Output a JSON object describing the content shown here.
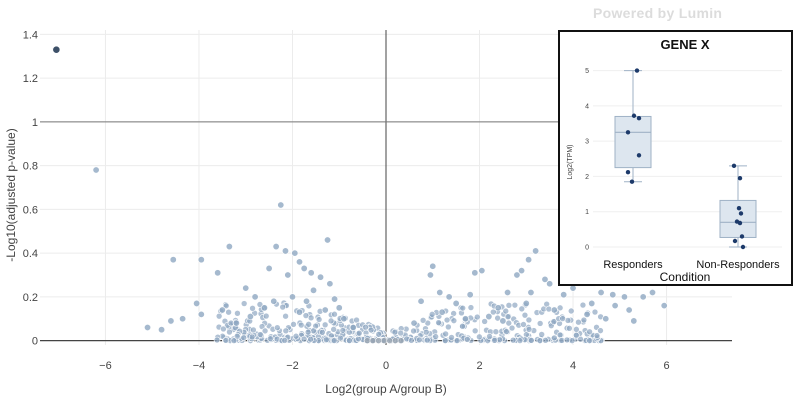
{
  "watermark": "Powered by Lumin",
  "chart_data": [
    {
      "type": "scatter",
      "title": "",
      "xlabel": "Log2(group A/group B)",
      "ylabel": "-Log10(adjusted p-value)",
      "xlim": [
        -7.4,
        7.4
      ],
      "ylim": [
        -0.02,
        1.42
      ],
      "xticks": [
        -6,
        -4,
        -2,
        0,
        2,
        4,
        6
      ],
      "yticks": [
        0,
        0.2,
        0.4,
        0.6,
        0.8,
        1,
        1.2,
        1.4
      ],
      "ytick_labels": [
        "0",
        "0.2",
        "0.4",
        "0.6",
        "0.8",
        "1",
        "1.2",
        "1.4"
      ],
      "threshold_line_y": 1,
      "vertical_line_x": 0,
      "grid": true,
      "point_color": "#8fa7c2",
      "highlight_color": "#3d5068",
      "highlight_point": {
        "x": -7.05,
        "y": 1.33
      },
      "points": [
        [
          -6.2,
          0.78
        ],
        [
          -2.25,
          0.62
        ],
        [
          -1.25,
          0.46
        ],
        [
          -2.35,
          0.43
        ],
        [
          -2.15,
          0.41
        ],
        [
          -1.95,
          0.4
        ],
        [
          -3.35,
          0.43
        ],
        [
          -1.85,
          0.36
        ],
        [
          -1.6,
          0.31
        ],
        [
          -1.75,
          0.33
        ],
        [
          -4.55,
          0.37
        ],
        [
          -3.95,
          0.37
        ],
        [
          -3.6,
          0.31
        ],
        [
          -2.5,
          0.33
        ],
        [
          -1.4,
          0.29
        ],
        [
          -2.1,
          0.3
        ],
        [
          -1.2,
          0.26
        ],
        [
          -1.55,
          0.23
        ],
        [
          -3.0,
          0.24
        ],
        [
          -2.8,
          0.2
        ],
        [
          -4.05,
          0.17
        ],
        [
          -3.5,
          0.14
        ],
        [
          -3.95,
          0.12
        ],
        [
          -4.35,
          0.1
        ],
        [
          -5.1,
          0.06
        ],
        [
          -4.8,
          0.05
        ],
        [
          -4.6,
          0.09
        ],
        [
          -2.6,
          0.15
        ],
        [
          -1.3,
          0.14
        ],
        [
          -1.0,
          0.15
        ],
        [
          -0.9,
          0.1
        ],
        [
          -0.7,
          0.06
        ],
        [
          -1.7,
          0.18
        ],
        [
          -2.4,
          0.18
        ],
        [
          -2.0,
          0.2
        ],
        [
          -3.2,
          0.08
        ],
        [
          -2.9,
          0.11
        ],
        [
          -1.85,
          0.13
        ],
        [
          -1.1,
          0.19
        ],
        [
          1.0,
          0.34
        ],
        [
          0.95,
          0.3
        ],
        [
          1.9,
          0.31
        ],
        [
          2.05,
          0.32
        ],
        [
          3.05,
          0.37
        ],
        [
          3.2,
          0.41
        ],
        [
          2.9,
          0.32
        ],
        [
          2.8,
          0.3
        ],
        [
          3.4,
          0.28
        ],
        [
          1.15,
          0.22
        ],
        [
          1.35,
          0.2
        ],
        [
          2.6,
          0.22
        ],
        [
          3.1,
          0.22
        ],
        [
          3.5,
          0.26
        ],
        [
          1.5,
          0.17
        ],
        [
          2.4,
          0.15
        ],
        [
          0.75,
          0.18
        ],
        [
          1.2,
          0.13
        ],
        [
          4.2,
          0.27
        ],
        [
          4.0,
          0.24
        ],
        [
          3.8,
          0.21
        ],
        [
          4.6,
          0.22
        ],
        [
          4.85,
          0.21
        ],
        [
          4.4,
          0.17
        ],
        [
          5.1,
          0.2
        ],
        [
          5.5,
          0.2
        ],
        [
          5.7,
          0.22
        ],
        [
          5.95,
          0.16
        ],
        [
          4.3,
          0.12
        ],
        [
          4.9,
          0.16
        ],
        [
          5.2,
          0.14
        ],
        [
          3.6,
          0.14
        ],
        [
          2.2,
          0.11
        ],
        [
          1.7,
          0.1
        ],
        [
          4.7,
          0.1
        ],
        [
          5.3,
          0.09
        ],
        [
          3.0,
          0.17
        ],
        [
          2.5,
          0.09
        ],
        [
          1.8,
          0.21
        ],
        [
          0.6,
          0.08
        ]
      ]
    },
    {
      "type": "box",
      "title": "GENE X",
      "xlabel": "Condition",
      "ylabel": "Log2(TPM)",
      "ylim": [
        0,
        5.3
      ],
      "yticks": [
        0,
        1,
        2,
        3,
        4,
        5
      ],
      "categories": [
        "Responders",
        "Non-Responders"
      ],
      "boxes": [
        {
          "q1": 2.25,
          "median": 3.25,
          "q3": 3.7,
          "whisker_low": 1.85,
          "whisker_high": 5.0,
          "points": [
            5.0,
            3.72,
            3.65,
            3.25,
            2.6,
            2.12,
            1.85
          ]
        },
        {
          "q1": 0.27,
          "median": 0.7,
          "q3": 1.32,
          "whisker_low": 0.0,
          "whisker_high": 2.3,
          "points": [
            2.3,
            1.95,
            1.1,
            0.95,
            0.72,
            0.68,
            0.3,
            0.17,
            0.0
          ]
        }
      ],
      "box_fill": "#dde6ef",
      "box_stroke": "#9fb2c6",
      "point_color": "#1d3a6a"
    }
  ]
}
